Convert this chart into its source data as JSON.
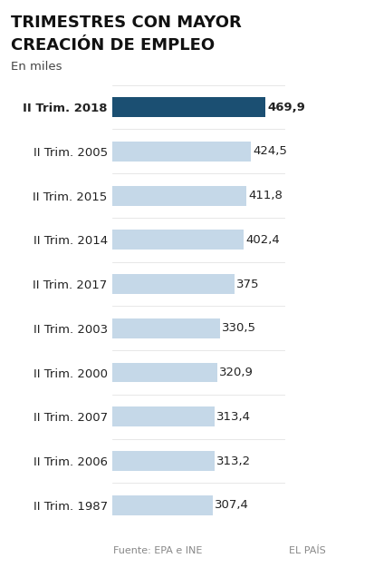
{
  "title_line1": "TRIMESTRES CON MAYOR",
  "title_line2": "CREACIÓN DE EMPLEO",
  "subtitle": "En miles",
  "categories": [
    "II Trim. 2018",
    "II Trim. 2005",
    "II Trim. 2015",
    "II Trim. 2014",
    "II Trim. 2017",
    "II Trim. 2003",
    "II Trim. 2000",
    "II Trim. 2007",
    "II Trim. 2006",
    "II Trim. 1987"
  ],
  "values": [
    469.9,
    424.5,
    411.8,
    402.4,
    375.0,
    330.5,
    320.9,
    313.4,
    313.2,
    307.4
  ],
  "value_labels": [
    "469,9",
    "424,5",
    "411,8",
    "402,4",
    "375",
    "330,5",
    "320,9",
    "313,4",
    "313,2",
    "307,4"
  ],
  "bar_colors": [
    "#1b4f72",
    "#c5d8e8",
    "#c5d8e8",
    "#c5d8e8",
    "#c5d8e8",
    "#c5d8e8",
    "#c5d8e8",
    "#c5d8e8",
    "#c5d8e8",
    "#c5d8e8"
  ],
  "background_color": "#ffffff",
  "footer_left": "Fuente: EPA e INE",
  "footer_right": "EL PAÍS",
  "xlim": [
    0,
    530
  ],
  "label_fontsize": 9.5,
  "value_fontsize": 9.5,
  "title_fontsize": 13,
  "subtitle_fontsize": 9.5
}
